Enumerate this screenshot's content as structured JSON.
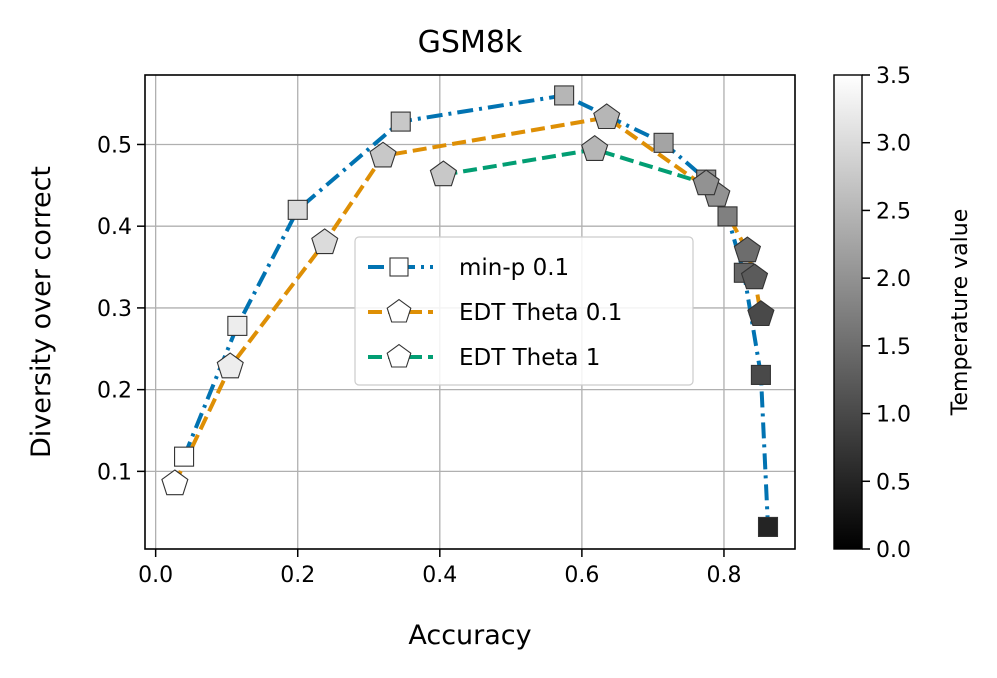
{
  "chart_data": {
    "type": "line",
    "title": "GSM8k",
    "xlabel": "Accuracy",
    "ylabel": "Diversity over correct",
    "xlim": [
      -0.015,
      0.9
    ],
    "ylim": [
      0.005,
      0.585
    ],
    "xticks": [
      0.0,
      0.2,
      0.4,
      0.6,
      0.8
    ],
    "xtick_labels": [
      "0.0",
      "0.2",
      "0.4",
      "0.6",
      "0.8"
    ],
    "yticks": [
      0.1,
      0.2,
      0.3,
      0.4,
      0.5
    ],
    "ytick_labels": [
      "0.1",
      "0.2",
      "0.3",
      "0.4",
      "0.5"
    ],
    "grid": true,
    "legend_position": "center-right",
    "colorbar": {
      "label": "Temperature value",
      "range": [
        0.0,
        3.5
      ],
      "ticks": [
        0.0,
        0.5,
        1.0,
        1.5,
        2.0,
        2.5,
        3.0,
        3.5
      ],
      "tick_labels": [
        "0.0",
        "0.5",
        "1.0",
        "1.5",
        "2.0",
        "2.5",
        "3.0",
        "3.5"
      ]
    },
    "series": [
      {
        "name": "min-p 0.1",
        "color": "#0173b2",
        "dash": "dashdot",
        "marker": "square",
        "points": [
          {
            "x": 0.04,
            "y": 0.118,
            "temp": 3.5
          },
          {
            "x": 0.115,
            "y": 0.278,
            "temp": 3.25
          },
          {
            "x": 0.2,
            "y": 0.42,
            "temp": 3.0
          },
          {
            "x": 0.345,
            "y": 0.528,
            "temp": 2.75
          },
          {
            "x": 0.575,
            "y": 0.56,
            "temp": 2.5
          },
          {
            "x": 0.715,
            "y": 0.502,
            "temp": 2.25
          },
          {
            "x": 0.775,
            "y": 0.457,
            "temp": 2.0
          },
          {
            "x": 0.805,
            "y": 0.412,
            "temp": 1.75
          },
          {
            "x": 0.828,
            "y": 0.343,
            "temp": 1.4
          },
          {
            "x": 0.852,
            "y": 0.218,
            "temp": 1.0
          },
          {
            "x": 0.862,
            "y": 0.032,
            "temp": 0.5
          }
        ]
      },
      {
        "name": "EDT Theta 0.1",
        "color": "#de8f05",
        "dash": "dashed",
        "marker": "pentagon",
        "points": [
          {
            "x": 0.027,
            "y": 0.085,
            "temp": 3.5
          },
          {
            "x": 0.105,
            "y": 0.228,
            "temp": 3.25
          },
          {
            "x": 0.238,
            "y": 0.38,
            "temp": 3.0
          },
          {
            "x": 0.32,
            "y": 0.486,
            "temp": 2.75
          },
          {
            "x": 0.635,
            "y": 0.533,
            "temp": 2.5
          },
          {
            "x": 0.79,
            "y": 0.438,
            "temp": 2.0
          },
          {
            "x": 0.833,
            "y": 0.37,
            "temp": 1.5
          },
          {
            "x": 0.843,
            "y": 0.337,
            "temp": 1.25
          },
          {
            "x": 0.852,
            "y": 0.292,
            "temp": 1.0
          }
        ]
      },
      {
        "name": "EDT Theta 1",
        "color": "#029e73",
        "dash": "dashed",
        "marker": "pentagon",
        "points": [
          {
            "x": 0.405,
            "y": 0.463,
            "temp": 2.75
          },
          {
            "x": 0.618,
            "y": 0.494,
            "temp": 2.5
          },
          {
            "x": 0.775,
            "y": 0.452,
            "temp": 2.0
          }
        ]
      }
    ]
  }
}
